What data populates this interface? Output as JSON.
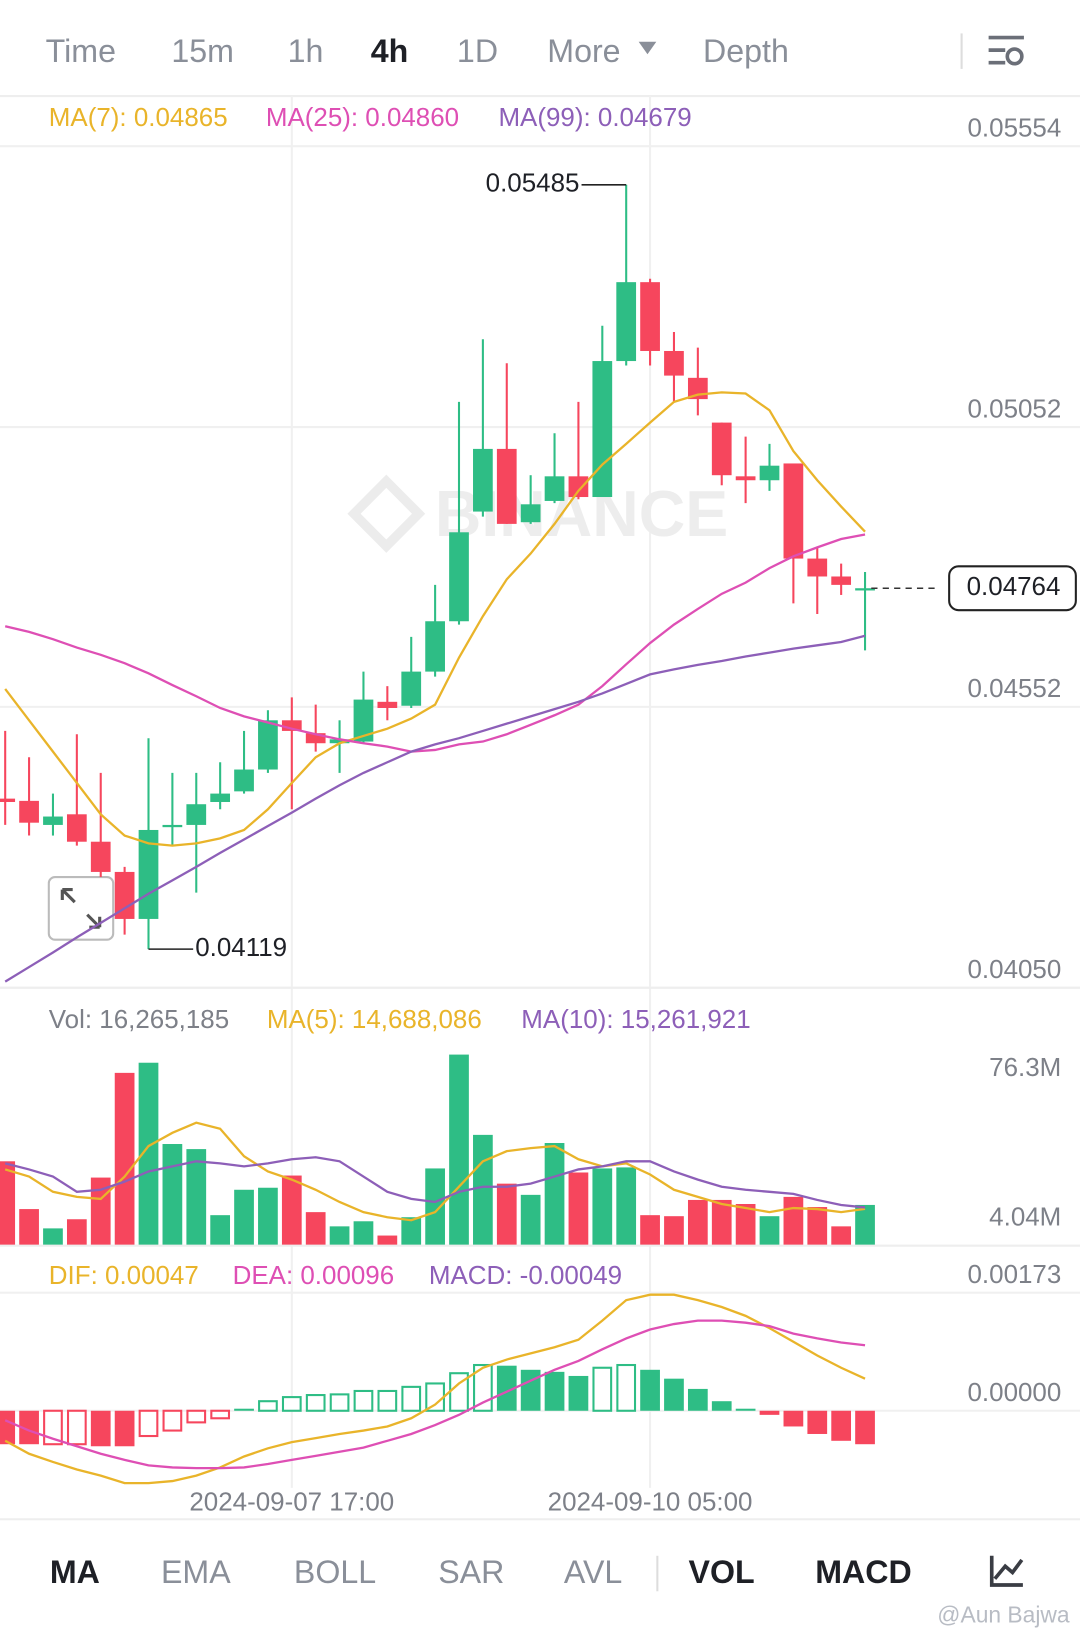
{
  "timeframes": [
    {
      "label": "Time"
    },
    {
      "label": "15m"
    },
    {
      "label": "1h"
    },
    {
      "label": "4h",
      "active": true
    },
    {
      "label": "1D"
    },
    {
      "label": "More"
    },
    {
      "label": "Depth"
    }
  ],
  "chart_data": [
    {
      "type": "candlestick",
      "categories": [
        null,
        null,
        null,
        null,
        null,
        null,
        null,
        null,
        null,
        null,
        null,
        null,
        "2024-09-07 17:00",
        null,
        null,
        null,
        null,
        null,
        null,
        null,
        null,
        null,
        null,
        null,
        null,
        null,
        null,
        "2024-09-10 05:00",
        null,
        null,
        null,
        null,
        null,
        null,
        null,
        null,
        null
      ],
      "open": [
        0.04388,
        0.04384,
        0.04341,
        0.0436,
        0.04311,
        0.04257,
        0.04173,
        0.04337,
        0.04341,
        0.04382,
        0.04401,
        0.0444,
        0.04528,
        0.04505,
        0.04487,
        0.0449,
        0.04561,
        0.04554,
        0.04615,
        0.04705,
        0.04901,
        0.05013,
        0.04882,
        0.0492,
        0.04964,
        0.04927,
        0.0517,
        0.05311,
        0.05188,
        0.0514,
        0.0506,
        0.04964,
        0.04957,
        0.04987,
        0.04817,
        0.04785,
        0.0476
      ],
      "high": [
        0.04509,
        0.04462,
        0.04397,
        0.04503,
        0.04434,
        0.04266,
        0.04496,
        0.04434,
        0.04434,
        0.04453,
        0.04509,
        0.04546,
        0.04569,
        0.04556,
        0.04528,
        0.04615,
        0.04589,
        0.04677,
        0.0477,
        0.05097,
        0.05209,
        0.05166,
        0.04966,
        0.05041,
        0.05097,
        0.05233,
        0.05485,
        0.05317,
        0.05222,
        0.05194,
        0.0506,
        0.05035,
        0.05022,
        0.04987,
        0.04836,
        0.04808,
        0.04793
      ],
      "low": [
        0.04341,
        0.04322,
        0.04322,
        0.04304,
        0.04248,
        0.04145,
        0.04119,
        0.04304,
        0.0422,
        0.04369,
        0.04397,
        0.04434,
        0.04369,
        0.04472,
        0.04434,
        0.04487,
        0.04528,
        0.0455,
        0.04606,
        0.04699,
        0.04892,
        0.04879,
        0.04879,
        0.04916,
        0.04923,
        0.04927,
        0.05162,
        0.05162,
        0.05097,
        0.05073,
        0.04948,
        0.04916,
        0.04938,
        0.04737,
        0.04718,
        0.04752,
        0.04653
      ],
      "close": [
        0.04382,
        0.04345,
        0.04356,
        0.04311,
        0.04257,
        0.04173,
        0.04332,
        0.04341,
        0.04378,
        0.04397,
        0.0444,
        0.04528,
        0.04509,
        0.04487,
        0.04494,
        0.04565,
        0.0455,
        0.04615,
        0.04705,
        0.04864,
        0.05013,
        0.04879,
        0.04914,
        0.04964,
        0.04927,
        0.0517,
        0.05311,
        0.05188,
        0.05144,
        0.05102,
        0.04966,
        0.04957,
        0.04983,
        0.04817,
        0.04785,
        0.0477,
        0.04764
      ],
      "up_color": "#2ebd85",
      "down_color": "#f6465d",
      "series": [
        {
          "name": "MA(7): 0.04865",
          "color": "#e9b42a",
          "values": [
            0.04584,
            0.04528,
            0.04472,
            0.04416,
            0.0436,
            0.04322,
            0.04308,
            0.04304,
            0.04308,
            0.04317,
            0.04332,
            0.04369,
            0.04416,
            0.04462,
            0.04487,
            0.045,
            0.04513,
            0.04531,
            0.04556,
            0.0464,
            0.04714,
            0.0478,
            0.04826,
            0.04879,
            0.04938,
            0.04985,
            0.05022,
            0.0506,
            0.05097,
            0.0511,
            0.05114,
            0.05112,
            0.05082,
            0.05009,
            0.04957,
            0.0491,
            0.04865
          ]
        },
        {
          "name": "MA(25): 0.04860",
          "color": "#de4fb4",
          "values": [
            0.04696,
            0.04686,
            0.04673,
            0.04658,
            0.04645,
            0.0463,
            0.04612,
            0.04591,
            0.04571,
            0.0455,
            0.04535,
            0.04524,
            0.04513,
            0.04503,
            0.04494,
            0.04487,
            0.04481,
            0.04472,
            0.04475,
            0.04485,
            0.0449,
            0.04503,
            0.0452,
            0.04537,
            0.04556,
            0.04589,
            0.04628,
            0.04666,
            0.04699,
            0.04727,
            0.04754,
            0.04774,
            0.048,
            0.04821,
            0.04837,
            0.04852,
            0.0486
          ]
        },
        {
          "name": "MA(99): 0.04679",
          "color": "#8d5fb8",
          "values": [
            0.04061,
            0.04087,
            0.04113,
            0.0414,
            0.04166,
            0.04192,
            0.04218,
            0.04242,
            0.04266,
            0.04291,
            0.04315,
            0.04339,
            0.04363,
            0.04388,
            0.04412,
            0.04434,
            0.04453,
            0.04472,
            0.04485,
            0.04496,
            0.04509,
            0.04522,
            0.04535,
            0.04548,
            0.04561,
            0.04576,
            0.04593,
            0.0461,
            0.04619,
            0.04627,
            0.04634,
            0.04642,
            0.04649,
            0.04656,
            0.04662,
            0.04668,
            0.04679
          ]
        }
      ],
      "ylim": [
        0.0405,
        0.05554
      ],
      "yticks": [
        0.05554,
        0.05052,
        0.04552,
        {
          "value": 0.0405,
          "label": "0.04050"
        }
      ],
      "grid": true,
      "annotations": [
        {
          "value": 0.05485
        },
        {
          "value": 0.04119
        }
      ],
      "last": 0.04764,
      "watermark": "BINANCE"
    },
    {
      "type": "bar",
      "series": [
        {
          "name": "Vol: 16,265,185",
          "values": [
            33690000,
            14610000,
            6900000,
            10550000,
            27190000,
            69000000,
            73050000,
            40590000,
            38560000,
            12180000,
            22320000,
            23130000,
            28000000,
            13390000,
            7710000,
            9740000,
            4040000,
            11360000,
            30840000,
            76300000,
            44240000,
            24760000,
            20290000,
            40990000,
            29220000,
            30840000,
            31250000,
            12180000,
            11770000,
            18260000,
            18260000,
            16640000,
            11770000,
            19480000,
            15420000,
            7710000,
            16265185
          ]
        },
        {
          "name": "MA(5): 14,688,086",
          "color": "#e9b42a",
          "type": "line",
          "values": [
            30440000,
            27600000,
            21510000,
            19480000,
            18670000,
            27600000,
            39770000,
            45050000,
            49110000,
            46670000,
            35710000,
            29630000,
            26380000,
            22320000,
            17450000,
            13390000,
            11360000,
            10150000,
            13390000,
            23540000,
            33690000,
            37740000,
            38960000,
            39770000,
            34500000,
            31660000,
            32870000,
            28410000,
            22320000,
            19480000,
            16640000,
            15020000,
            13390000,
            15020000,
            14610000,
            13390000,
            14688086
          ]
        },
        {
          "name": "MA(10): 15,261,921",
          "color": "#8d5fb8",
          "type": "line",
          "values": [
            32870000,
            30440000,
            27600000,
            21510000,
            22320000,
            25570000,
            29630000,
            31660000,
            33690000,
            32870000,
            31660000,
            32870000,
            34500000,
            35310000,
            33690000,
            27600000,
            21510000,
            18670000,
            17450000,
            21510000,
            23540000,
            23540000,
            24760000,
            27600000,
            30440000,
            31660000,
            33690000,
            33690000,
            29630000,
            26380000,
            23540000,
            22320000,
            21510000,
            20700000,
            18260000,
            16230000,
            15261921
          ]
        }
      ],
      "ylim": [
        0,
        76300000
      ],
      "yticks": [
        {
          "value": 76300000,
          "label": "76.3M"
        },
        {
          "value": 4040000,
          "label": "4.04M"
        }
      ]
    },
    {
      "type": "bar",
      "series": [
        {
          "name": "DIF: 0.00047",
          "color": "#e9b42a",
          "type": "line",
          "values": [
            -0.00044,
            -0.00063,
            -0.00075,
            -0.00086,
            -0.00095,
            -0.00106,
            -0.00106,
            -0.00103,
            -0.00095,
            -0.00083,
            -0.00067,
            -0.00055,
            -0.00046,
            -0.0004,
            -0.00034,
            -0.00029,
            -0.00023,
            -0.00011,
            9e-05,
            0.0004,
            0.00063,
            0.00075,
            0.00084,
            0.00093,
            0.00104,
            0.00132,
            0.00162,
            0.0017,
            0.0017,
            0.00162,
            0.00152,
            0.00139,
            0.00121,
            0.00101,
            0.00081,
            0.00063,
            0.00047
          ]
        },
        {
          "name": "DEA: 0.00096",
          "color": "#de4fb4",
          "type": "line",
          "values": [
            -0.00014,
            -0.00029,
            -0.00041,
            -0.00052,
            -0.00063,
            -0.00072,
            -0.0008,
            -0.00083,
            -0.00084,
            -0.00084,
            -0.00083,
            -0.00078,
            -0.00072,
            -0.00066,
            -0.0006,
            -0.00054,
            -0.00044,
            -0.00034,
            -0.00021,
            -6e-05,
            0.00012,
            0.00028,
            0.00044,
            0.0006,
            0.00073,
            0.0009,
            0.00106,
            0.00119,
            0.00127,
            0.00132,
            0.00132,
            0.00129,
            0.00124,
            0.00113,
            0.00106,
            0.001,
            0.00096
          ]
        },
        {
          "name": "MACD: -0.00049",
          "color": "#8d5fb8",
          "values": [
            -0.00049,
            -0.00049,
            -0.00049,
            -0.00049,
            -0.00052,
            -0.00052,
            -0.00037,
            -0.00029,
            -0.00017,
            -0.00011,
            3e-05,
            0.00014,
            0.0002,
            0.00023,
            0.00024,
            0.00029,
            0.00029,
            0.00035,
            0.0004,
            0.00055,
            0.00067,
            0.00066,
            0.0006,
            0.00057,
            0.00051,
            0.00063,
            0.00067,
            0.0006,
            0.00047,
            0.00032,
            0.00014,
            3e-05,
            -6e-05,
            -0.00023,
            -0.00034,
            -0.00044,
            -0.00049
          ],
          "hollow": [
            false,
            false,
            true,
            true,
            false,
            false,
            true,
            true,
            true,
            true,
            false,
            true,
            true,
            true,
            true,
            true,
            true,
            true,
            true,
            true,
            true,
            false,
            false,
            false,
            false,
            true,
            true,
            false,
            false,
            false,
            false,
            false,
            false,
            false,
            false,
            false,
            false
          ]
        }
      ],
      "ylim": [
        -0.00113,
        0.00173
      ],
      "yticks": [
        0.00173,
        {
          "value": 0,
          "label": "0.00000"
        }
      ],
      "grid": true
    }
  ],
  "indicators": [
    {
      "label": "MA",
      "active": true
    },
    {
      "label": "EMA"
    },
    {
      "label": "BOLL"
    },
    {
      "label": "SAR"
    },
    {
      "label": "AVL"
    },
    {
      "label": "VOL",
      "active": true
    },
    {
      "label": "MACD",
      "active": true
    }
  ],
  "credit": "@Aun Bajwa"
}
